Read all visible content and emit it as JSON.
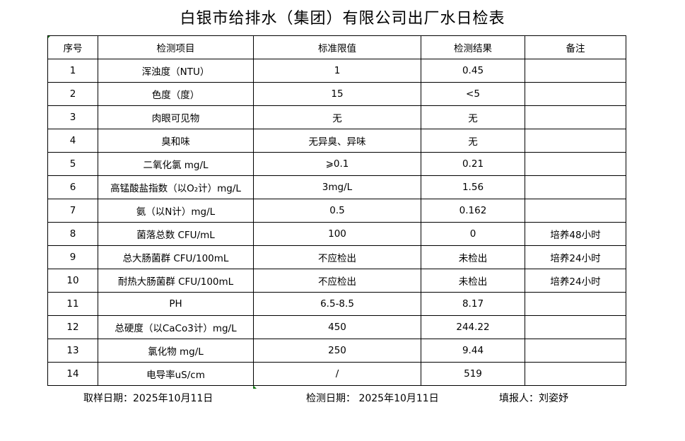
{
  "title": "白银市给排水（集团）有限公司出厂水日检表",
  "headers": [
    "序号",
    "检测项目",
    "标准限值",
    "检测结果",
    "备注"
  ],
  "rows": [
    [
      "1",
      "浑浊度（NTU）",
      "1",
      "0.45",
      ""
    ],
    [
      "2",
      "色度（度）",
      "15",
      "<5",
      ""
    ],
    [
      "3",
      "肉眼可见物",
      "无",
      "无",
      ""
    ],
    [
      "4",
      "臭和味",
      "无异臭、异味",
      "无",
      ""
    ],
    [
      "5",
      "二氧化氯 mg/L",
      "⩾0.1",
      "0.21",
      ""
    ],
    [
      "6",
      "高锰酸盐指数（以O₂计）mg/L",
      "3mg/L",
      "1.56",
      ""
    ],
    [
      "7",
      "氨（以N计）mg/L",
      "0.5",
      "0.162",
      ""
    ],
    [
      "8",
      "菌落总数 CFU/mL",
      "100",
      "0",
      "培养48小时"
    ],
    [
      "9",
      "总大肠菌群 CFU/100mL",
      "不应检出",
      "未检出",
      "培养24小时"
    ],
    [
      "10",
      "耐热大肠菌群 CFU/100mL",
      "不应检出",
      "未检出",
      "培养24小时"
    ],
    [
      "11",
      "PH",
      "6.5-8.5",
      "8.17",
      ""
    ],
    [
      "12",
      "总硬度（以CaCo3计）mg/L",
      "450",
      "244.22",
      ""
    ],
    [
      "13",
      "氯化物 mg/L",
      "250",
      "9.44",
      ""
    ],
    [
      "14",
      "电导率uS/cm",
      "/",
      "519",
      ""
    ]
  ],
  "footer": {
    "sample_date": "取样日期：2025年10月11日",
    "test_date": "检测日期：  2025年10月11日",
    "reporter": "填报人：刘姿妤"
  }
}
